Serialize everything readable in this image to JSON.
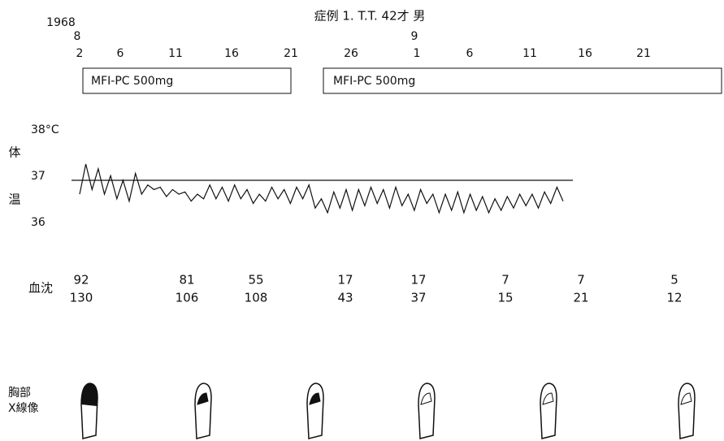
{
  "title": "症例 1. T.T. 42才 男",
  "date_axis": {
    "year": "1968",
    "months": [
      "8",
      "9"
    ],
    "days": [
      "2",
      "6",
      "11",
      "16",
      "21",
      "26",
      "1",
      "6",
      "11",
      "16",
      "21"
    ]
  },
  "medication": [
    "MFI-PC 500mg",
    "MFI-PC 500mg"
  ],
  "chart_data": {
    "type": "line",
    "y_label_top": "体",
    "y_label_bottom": "温",
    "ylim": [
      35.8,
      38.2
    ],
    "yticks": [
      {
        "value": 38,
        "label": "38°C"
      },
      37,
      36
    ],
    "reference_line": 37,
    "color": "#111",
    "values": [
      36.7,
      37.35,
      36.8,
      37.25,
      36.7,
      37.1,
      36.6,
      37.0,
      36.55,
      37.15,
      36.7,
      36.9,
      36.8,
      36.85,
      36.65,
      36.8,
      36.7,
      36.75,
      36.55,
      36.7,
      36.6,
      36.9,
      36.6,
      36.85,
      36.55,
      36.9,
      36.6,
      36.8,
      36.5,
      36.7,
      36.55,
      36.85,
      36.6,
      36.8,
      36.5,
      36.85,
      36.6,
      36.9,
      36.4,
      36.6,
      36.3,
      36.75,
      36.4,
      36.8,
      36.35,
      36.8,
      36.45,
      36.85,
      36.5,
      36.8,
      36.4,
      36.85,
      36.45,
      36.7,
      36.35,
      36.8,
      36.5,
      36.7,
      36.3,
      36.7,
      36.35,
      36.75,
      36.3,
      36.7,
      36.35,
      36.65,
      36.3,
      36.6,
      36.35,
      36.65,
      36.4,
      36.7,
      36.45,
      36.7,
      36.4,
      36.75,
      36.5,
      36.85,
      36.55
    ]
  },
  "esr": {
    "label": "血沈",
    "first_hour": [
      "92",
      "81",
      "55",
      "17",
      "17",
      "7",
      "7",
      "5"
    ],
    "second_hour": [
      "130",
      "106",
      "108",
      "43",
      "37",
      "15",
      "21",
      "12"
    ]
  },
  "xray": {
    "label_1": "胸部",
    "label_2": "X線像"
  }
}
